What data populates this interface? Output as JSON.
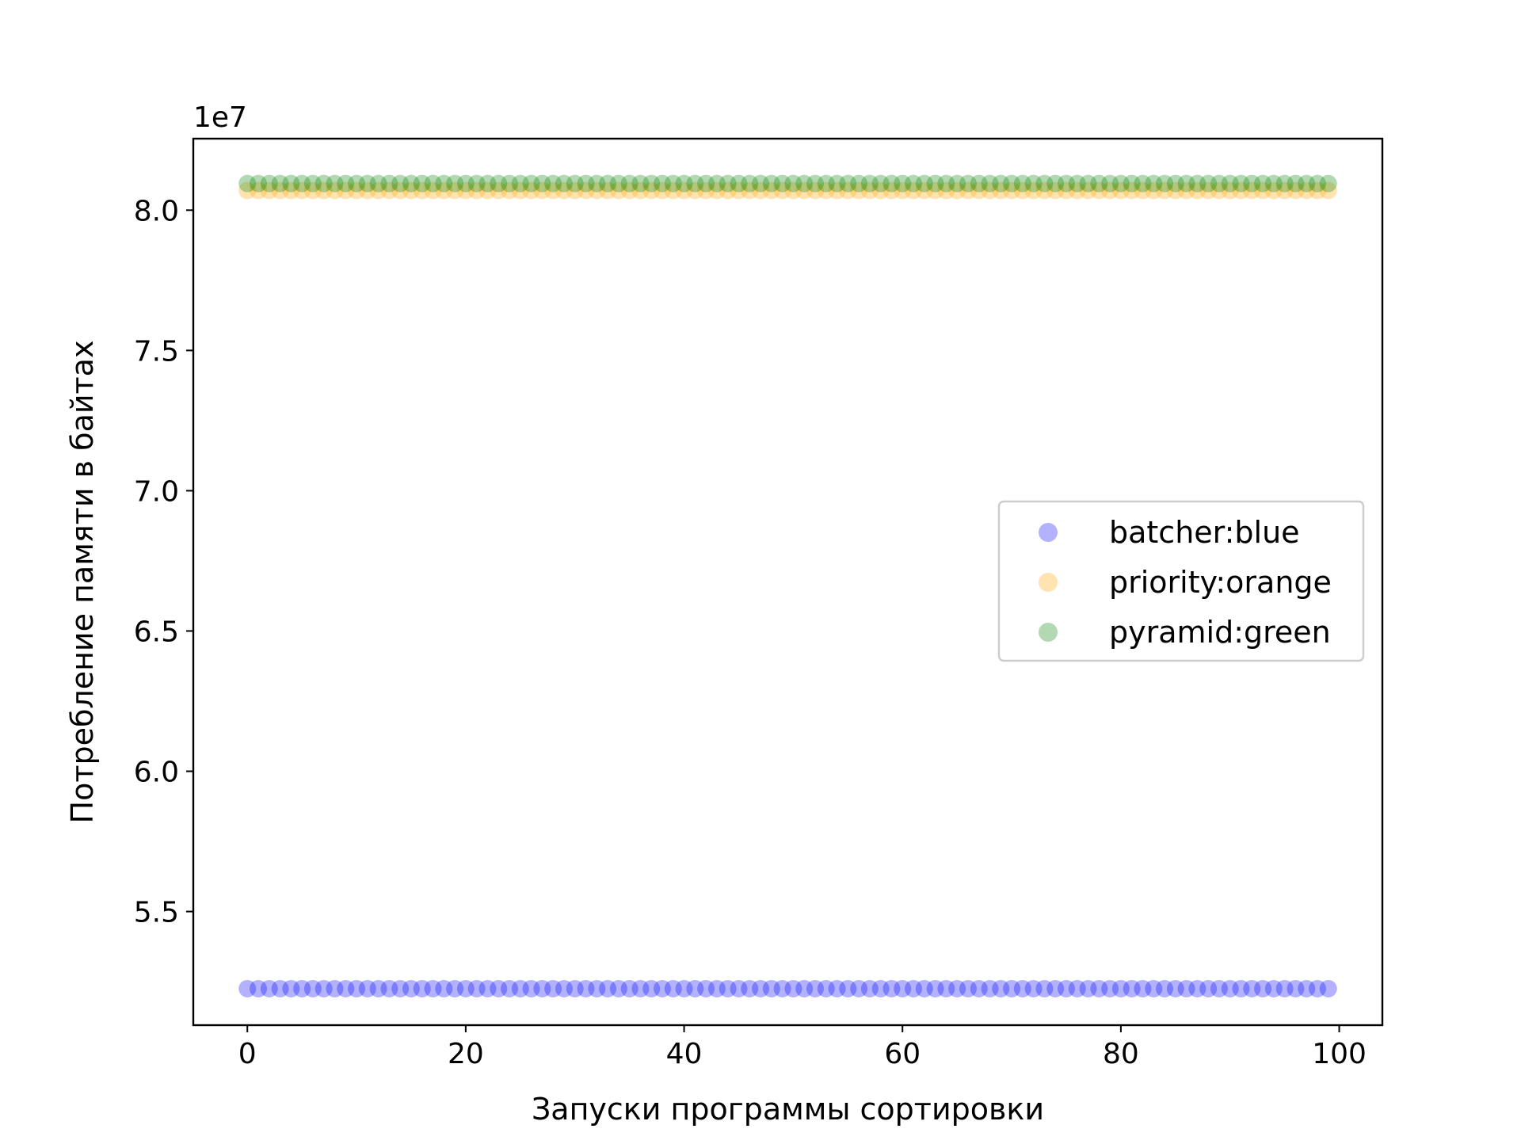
{
  "chart_data": {
    "type": "scatter",
    "title": "",
    "xlabel": "Запуски программы сортировки",
    "ylabel": "Потребление памяти в байтах",
    "y_offset_label": "1e7",
    "x_range": [
      -4.95,
      103.95
    ],
    "y_range": [
      50950000,
      82550000
    ],
    "x_ticks": [
      0,
      20,
      40,
      60,
      80,
      100
    ],
    "x_tick_labels": [
      "0",
      "20",
      "40",
      "60",
      "80",
      "100"
    ],
    "y_ticks": [
      55000000,
      60000000,
      65000000,
      70000000,
      75000000,
      80000000
    ],
    "y_tick_labels": [
      "5.5",
      "6.0",
      "6.5",
      "7.0",
      "7.5",
      "8.0"
    ],
    "grid": false,
    "legend_position": "center-right",
    "x": {
      "start": 0,
      "end": 99,
      "step": 1
    },
    "series": [
      {
        "name": "batcher:blue",
        "color": "#0000ff",
        "alpha": 0.3,
        "value": 52250000
      },
      {
        "name": "priority:orange",
        "color": "#ffa500",
        "alpha": 0.3,
        "value": 80700000
      },
      {
        "name": "pyramid:green",
        "color": "#008000",
        "alpha": 0.3,
        "value": 80950000
      }
    ]
  }
}
